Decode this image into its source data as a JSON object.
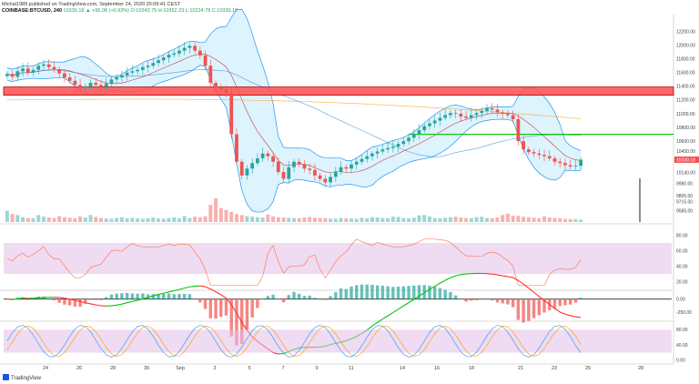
{
  "header": {
    "user_line": "Michal1989 published on TradingView.com, September 24, 2020 20:09:41 CEST",
    "symbol": "COINBASE:BTCUSD, 240",
    "ohlc": "10330.18 ▲ +95.08 (+0.93%)  O:10243.75 H:10352.23 L:10224.78 C:10330.18"
  },
  "brand": {
    "label": "TradingView"
  },
  "colors": {
    "up": "#26a69a",
    "down": "#ef5350",
    "bb": "#2196f3",
    "bb_fill": "#b3e5fc",
    "ma_long": "#ff9800",
    "ma_mid": "#1976d2",
    "resistance_zone": "#ff4d4d",
    "support_line": "#00c800",
    "rsi": "#ff7043",
    "osc_band": "#e1bee7",
    "macd_up": "#00c800",
    "macd_down": "#ff3030",
    "stoch_k": "#2196f3",
    "stoch_d": "#ff9800"
  },
  "chart_data": [
    {
      "panel": "price",
      "type": "candlestick",
      "y_ticks": [
        "12200.00",
        "12000.00",
        "11800.00",
        "11600.00",
        "11400.00",
        "11200.00",
        "11000.00",
        "10800.00",
        "10600.00",
        "10450.00",
        "10330.18",
        "10140.00",
        "9980.00",
        "9805.00",
        "9715.00",
        "9585.00"
      ],
      "ylim": [
        9580,
        12420
      ],
      "last_price_label": "10330.18",
      "x_labels": [
        "24",
        "26",
        "28",
        "30",
        "Sep",
        "3",
        "5",
        "7",
        "9",
        "11",
        "14",
        "16",
        "18",
        "21",
        "23",
        "25",
        "28"
      ],
      "resistance_zone": [
        11270,
        11390
      ],
      "support_line": 10700,
      "close": [
        11580,
        11540,
        11620,
        11660,
        11600,
        11640,
        11700,
        11720,
        11680,
        11650,
        11590,
        11530,
        11480,
        11420,
        11380,
        11400,
        11450,
        11420,
        11390,
        11440,
        11500,
        11530,
        11560,
        11600,
        11620,
        11640,
        11680,
        11700,
        11740,
        11780,
        11820,
        11860,
        11880,
        11920,
        11960,
        11990,
        11920,
        11850,
        11700,
        11450,
        11380,
        11350,
        11300,
        10700,
        10300,
        10100,
        10200,
        10280,
        10350,
        10420,
        10380,
        10300,
        10150,
        10050,
        10220,
        10300,
        10260,
        10200,
        10180,
        10100,
        10050,
        10000,
        10080,
        10150,
        10220,
        10200,
        10260,
        10300,
        10340,
        10380,
        10420,
        10450,
        10480,
        10500,
        10520,
        10560,
        10600,
        10650,
        10700,
        10760,
        10820,
        10860,
        10900,
        10940,
        10980,
        11010,
        11000,
        10960,
        10940,
        10980,
        11010,
        11040,
        11080,
        11060,
        11020,
        11000,
        10980,
        10920,
        10600,
        10480,
        10440,
        10420,
        10400,
        10380,
        10350,
        10300,
        10280,
        10250,
        10230,
        10240,
        10330
      ],
      "volume": [
        420,
        300,
        260,
        180,
        150,
        140,
        260,
        200,
        170,
        150,
        220,
        180,
        160,
        140,
        210,
        170,
        260,
        190,
        150,
        130,
        120,
        150,
        180,
        140,
        160,
        130,
        120,
        140,
        170,
        130,
        120,
        150,
        170,
        140,
        220,
        150,
        200,
        180,
        210,
        640,
        880,
        520,
        450,
        380,
        300,
        260,
        220,
        200,
        180,
        170,
        280,
        210,
        180,
        170,
        160,
        150,
        140,
        170,
        190,
        160,
        150,
        140,
        130,
        120,
        150,
        140,
        130,
        120,
        160,
        140,
        180,
        170,
        150,
        140,
        200,
        190,
        150,
        140,
        160,
        250,
        260,
        210,
        150,
        140,
        160,
        180,
        200,
        170,
        150,
        140,
        180,
        200,
        150,
        140,
        170,
        260,
        310,
        240,
        230,
        200,
        180,
        160,
        140,
        210,
        170,
        150,
        140,
        120,
        110,
        100,
        90
      ]
    },
    {
      "panel": "rsi",
      "type": "line",
      "y_ticks": [
        "80.00",
        "60.00",
        "40.00",
        "20.00"
      ],
      "ylim": [
        10,
        90
      ],
      "band": [
        30,
        70
      ]
    },
    {
      "panel": "macd",
      "type": "line",
      "y_ticks": [
        "0.00",
        "-250.00"
      ],
      "ylim": [
        -400,
        150
      ]
    },
    {
      "panel": "stochastic",
      "type": "line",
      "y_ticks": [
        "80.00",
        "40.00",
        "0.00"
      ],
      "ylim": [
        -5,
        100
      ],
      "band": [
        20,
        80
      ]
    }
  ]
}
